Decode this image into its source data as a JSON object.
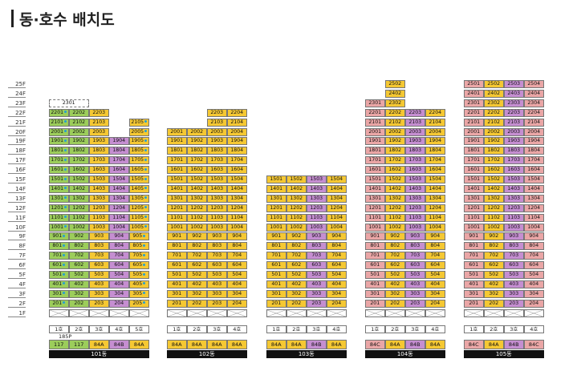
{
  "title": "동·호수 배치도",
  "floors": [
    "25F",
    "24F",
    "23F",
    "22F",
    "21F",
    "20F",
    "19F",
    "18F",
    "17F",
    "16F",
    "15F",
    "14F",
    "13F",
    "12F",
    "11F",
    "10F",
    "9F",
    "8F",
    "7F",
    "6F",
    "5F",
    "4F",
    "3F",
    "2F",
    "1F"
  ],
  "colors": {
    "84A": "#f5c833",
    "84B": "#c58ed1",
    "84C": "#eaa6a6",
    "117": "#9ccd5b"
  },
  "buildings": [
    {
      "name": "101동",
      "lines": [
        "1호",
        "2호",
        "3호",
        "4호",
        "5호"
      ],
      "types": [
        "117",
        "117",
        "84A",
        "84B",
        "84A"
      ],
      "note": "185P",
      "top": [
        22,
        22,
        22,
        19,
        21
      ],
      "bottom": [
        2,
        2,
        2,
        2,
        2
      ],
      "top_extra": {
        "label": "2301",
        "floor": 23,
        "span": [
          0,
          1
        ]
      },
      "dots": [
        0,
        4
      ]
    },
    {
      "name": "102동",
      "lines": [
        "1호",
        "2호",
        "3호",
        "4호"
      ],
      "types": [
        "84A",
        "84A",
        "84A",
        "84A"
      ],
      "top": [
        20,
        20,
        22,
        22
      ],
      "bottom": [
        2,
        2,
        2,
        2
      ]
    },
    {
      "name": "103동",
      "lines": [
        "1호",
        "2호",
        "3호",
        "4호"
      ],
      "types": [
        "84A",
        "84A",
        "84B",
        "84A"
      ],
      "top": [
        15,
        15,
        15,
        15
      ],
      "bottom": [
        2,
        2,
        2,
        2
      ]
    },
    {
      "name": "104동",
      "lines": [
        "1호",
        "2호",
        "3호",
        "4호"
      ],
      "types": [
        "84C",
        "84A",
        "84B",
        "84A"
      ],
      "top": [
        23,
        25,
        22,
        22
      ],
      "bottom": [
        2,
        2,
        2,
        2
      ]
    },
    {
      "name": "105동",
      "lines": [
        "1호",
        "2호",
        "3호",
        "4호"
      ],
      "types": [
        "84C",
        "84A",
        "84B",
        "84C"
      ],
      "top": [
        25,
        25,
        25,
        25
      ],
      "bottom": [
        2,
        2,
        2,
        2
      ]
    }
  ]
}
